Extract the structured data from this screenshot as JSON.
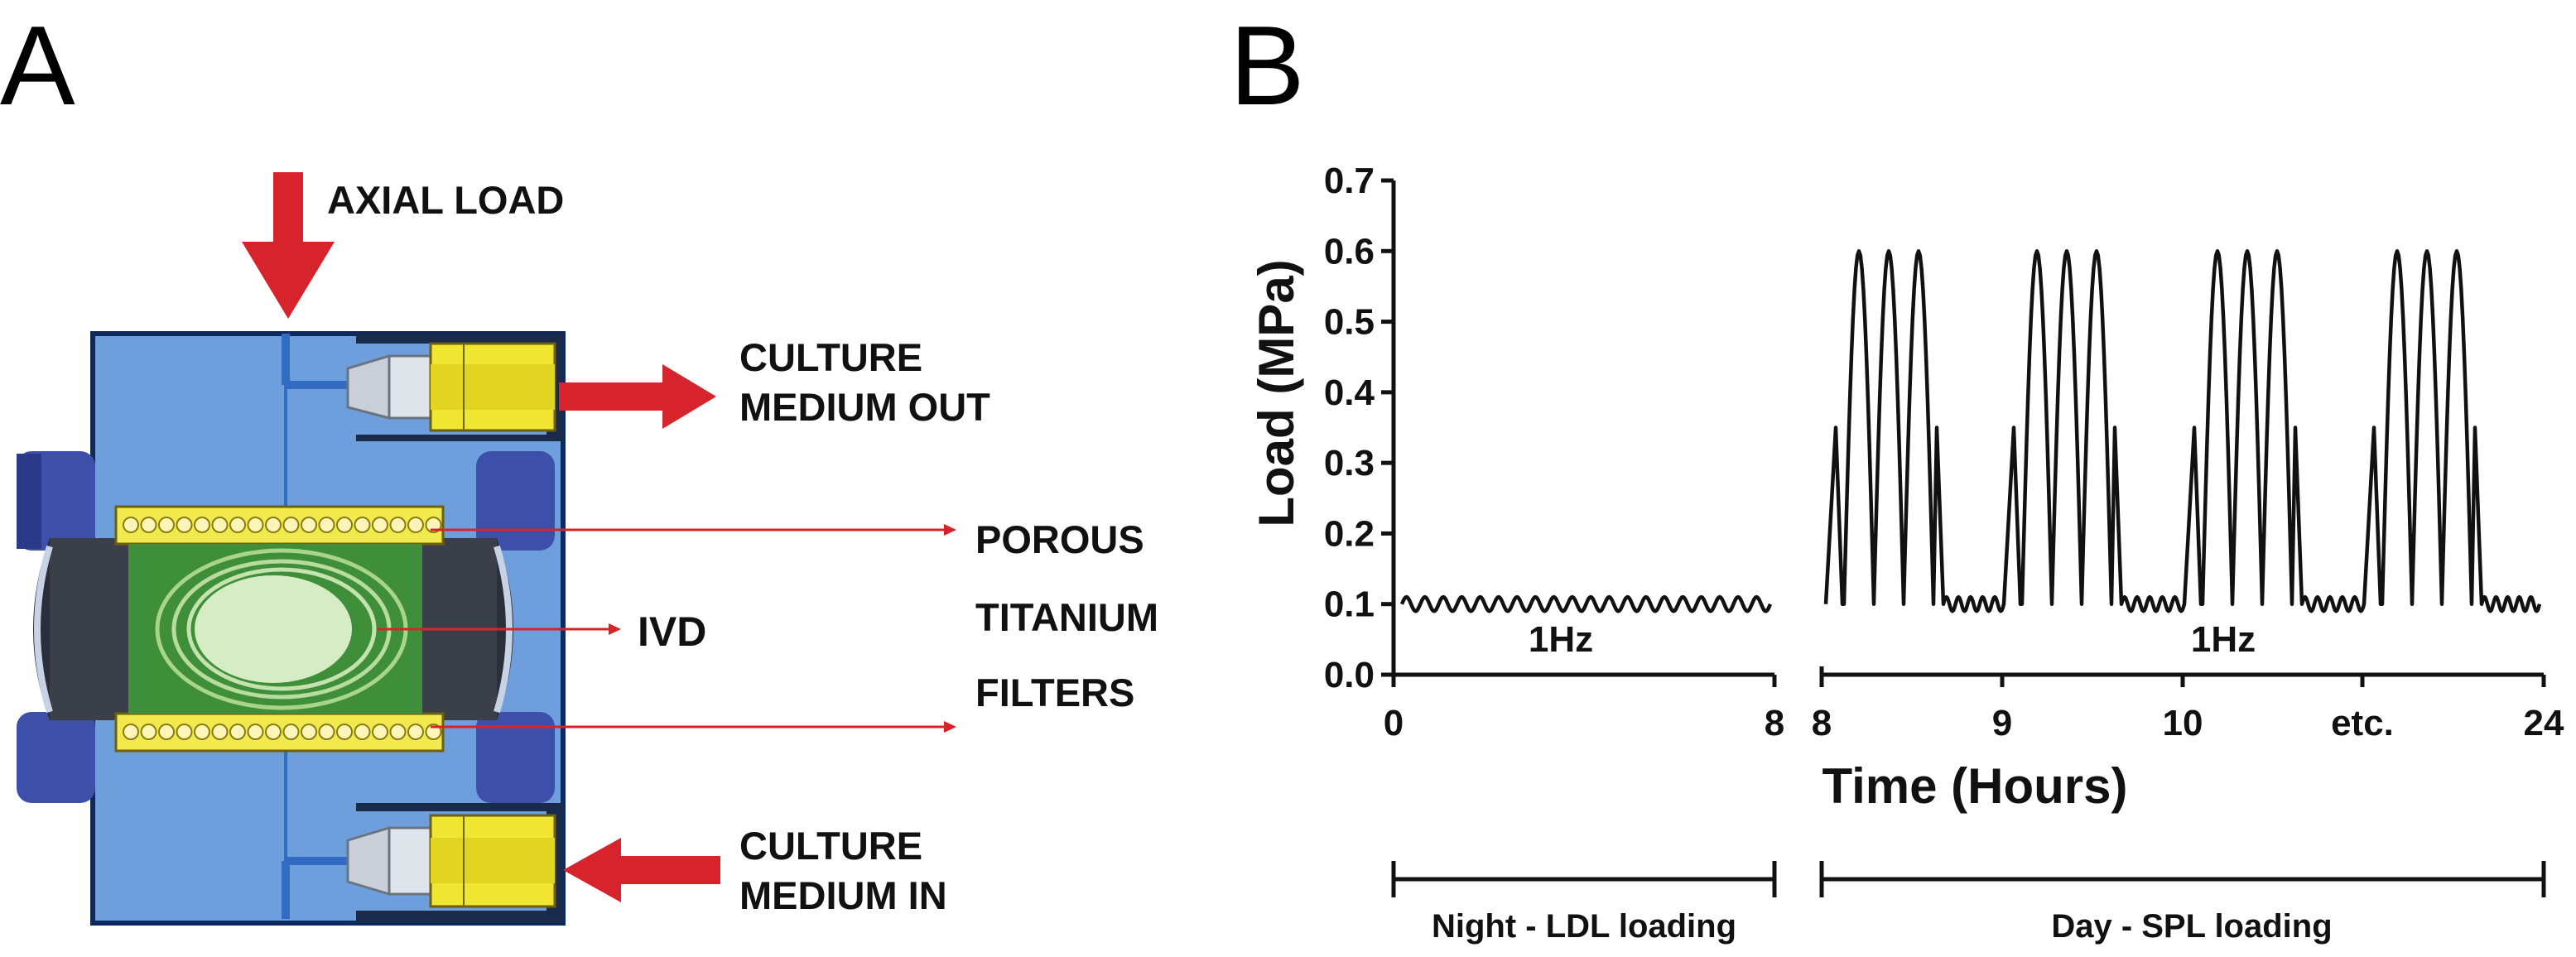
{
  "panel_a": {
    "letter": "A",
    "labels": {
      "axial_load": "AXIAL LOAD",
      "culture_out_1": "CULTURE",
      "culture_out_2": "MEDIUM OUT",
      "porous": "POROUS",
      "titanium": "TITANIUM",
      "filters": "FILTERS",
      "ivd": "IVD",
      "culture_in_1": "CULTURE",
      "culture_in_2": "MEDIUM IN"
    },
    "colors": {
      "chamber": "#6e9fdc",
      "chamber_edge": "#0d2a5e",
      "filter": "#f2e94e",
      "ivd_outer": "#3f8f3a",
      "ivd_core": "#d6ecc4",
      "arrow": "#d7232b",
      "fitting": "#f0e530",
      "clamp": "#3d4fa8"
    }
  },
  "panel_b": {
    "letter": "B",
    "y_axis_title": "Load (MPa)",
    "x_axis_title": "Time (Hours)",
    "segment_labels": {
      "night_freq": "1Hz",
      "day_freq": "1Hz"
    },
    "phases": {
      "night": "Night - LDL loading",
      "day": "Day - SPL loading"
    }
  },
  "chart_data": {
    "type": "line",
    "ylabel": "Load (MPa)",
    "xlabel": "Time (Hours)",
    "ylim": [
      0.0,
      0.7
    ],
    "yticks": [
      "0.0",
      "0.1",
      "0.2",
      "0.3",
      "0.4",
      "0.5",
      "0.6",
      "0.7"
    ],
    "yticks_values": [
      0.0,
      0.1,
      0.2,
      0.3,
      0.4,
      0.5,
      0.6,
      0.7
    ],
    "night_xticks": [
      "0",
      "8"
    ],
    "day_xticks": [
      "8",
      "9",
      "10",
      "etc.",
      "24"
    ],
    "night": {
      "x_range": [
        0,
        8
      ],
      "baseline": 0.1,
      "amplitude": 0.01,
      "label": "1Hz"
    },
    "day": {
      "x_range": [
        8,
        24
      ],
      "baseline": 0.1,
      "peak": 0.6,
      "first_peak": 0.35,
      "cycles_per_block": 3,
      "blocks": 4,
      "label": "1Hz"
    },
    "grid": false
  }
}
